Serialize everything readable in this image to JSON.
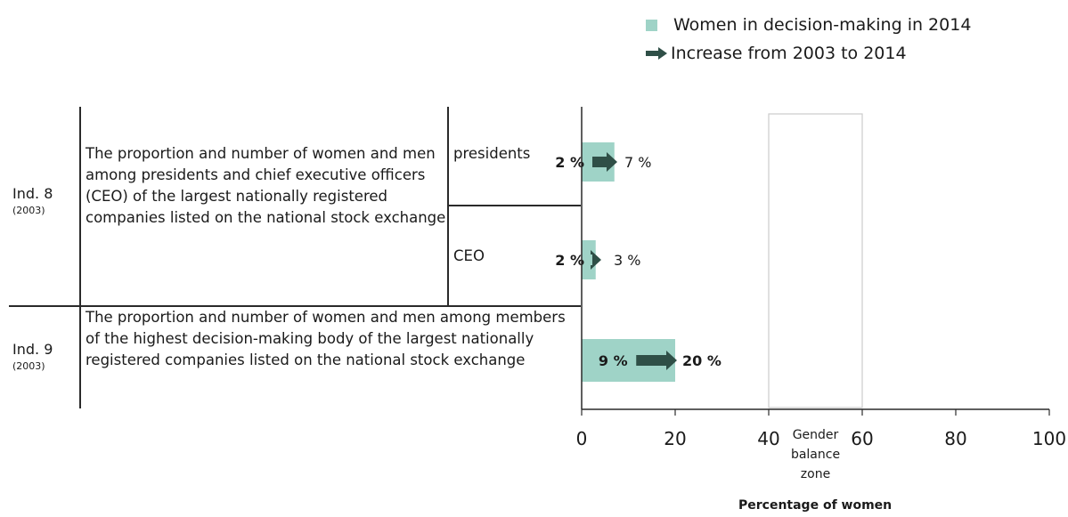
{
  "legend": {
    "bar_label": "Women in decision-making in 2014",
    "arrow_label": "Increase from 2003 to 2014"
  },
  "rows": [
    {
      "indicator": "Ind. 8",
      "year": "(2003)",
      "description": "The proportion and number of women and men among presidents and chief executive officers (CEO) of the largest nationally registered companies listed on the national stock exchange",
      "subrows": [
        "presidents",
        "CEO"
      ]
    },
    {
      "indicator": "Ind. 9",
      "year": "(2003)",
      "description": "The proportion and number of women and men among members of the highest decision-making body of the largest nationally registered companies listed on the national stock exchange"
    }
  ],
  "chart_data": {
    "type": "bar",
    "orientation": "horizontal",
    "categories": [
      "presidents",
      "CEO",
      "Ind. 9"
    ],
    "values_2003": [
      2,
      2,
      9
    ],
    "values_2014": [
      7,
      3,
      20
    ],
    "labels_2003": [
      "2 %",
      "2 %",
      "9 %"
    ],
    "labels_2014": [
      "7 %",
      "3 %",
      "20 %"
    ],
    "xlim": [
      0,
      100
    ],
    "xticks": [
      0,
      20,
      40,
      60,
      80,
      100
    ],
    "xlabel": "Percentage of women",
    "zone": {
      "from": 40,
      "to": 60,
      "label": [
        "Gender",
        "balance",
        "zone"
      ]
    },
    "colors": {
      "bar": "#9fd3c7",
      "arrow": "#2f4f47",
      "zone_border": "#cccccc"
    }
  }
}
